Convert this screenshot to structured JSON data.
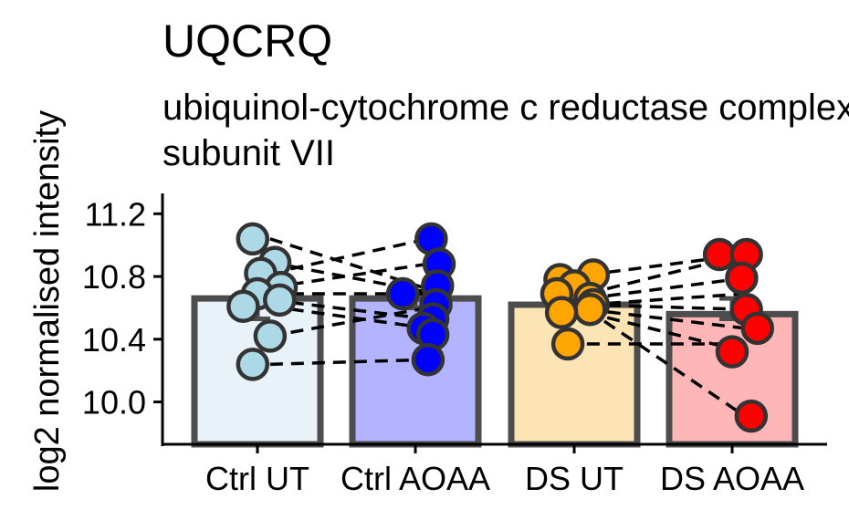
{
  "chart_data": {
    "type": "bar",
    "title": "UQCRQ",
    "subtitle": [
      "ubiquinol-cytochrome c reductase complex III",
      "subunit VII"
    ],
    "ylabel": "log2 normalised intensity",
    "xlabel": "",
    "ylim": [
      9.73,
      11.33
    ],
    "yticks": [
      10.0,
      10.4,
      10.8,
      11.2
    ],
    "ytick_labels": [
      "10.0",
      "10.4",
      "10.8",
      "11.2"
    ],
    "categories": [
      "Ctrl UT",
      "Ctrl AOAA",
      "DS UT",
      "DS AOAA"
    ],
    "bar_values": [
      10.66,
      10.66,
      10.62,
      10.56
    ],
    "bar_fill_colors": [
      "#e8f2f8",
      "#b3b3ff",
      "#fde4b4",
      "#ffb6b6"
    ],
    "point_colors": [
      "#add8e6",
      "#0000ff",
      "#ffa500",
      "#ff0000"
    ],
    "bar_outline_color": "#4d4d4d",
    "errorbars": [
      {
        "low": 10.53,
        "high": 10.74
      },
      {
        "low": 10.6,
        "high": 10.68
      },
      {
        "low": 10.56,
        "high": 10.67
      },
      {
        "low": 10.53,
        "high": 10.66
      }
    ],
    "points": [
      [
        {
          "dx": -0.03,
          "y": 11.04
        },
        {
          "dx": 0.11,
          "y": 10.89
        },
        {
          "dx": 0.02,
          "y": 10.82
        },
        {
          "dx": 0.15,
          "y": 10.73
        },
        {
          "dx": 0.0,
          "y": 10.69
        },
        {
          "dx": 0.14,
          "y": 10.65
        },
        {
          "dx": -0.09,
          "y": 10.61
        },
        {
          "dx": 0.08,
          "y": 10.42
        },
        {
          "dx": -0.03,
          "y": 10.24
        }
      ],
      [
        {
          "dx": 0.1,
          "y": 11.04
        },
        {
          "dx": 0.15,
          "y": 10.88
        },
        {
          "dx": 0.14,
          "y": 10.74
        },
        {
          "dx": -0.08,
          "y": 10.69
        },
        {
          "dx": 0.13,
          "y": 10.62
        },
        {
          "dx": 0.11,
          "y": 10.53
        },
        {
          "dx": 0.05,
          "y": 10.47
        },
        {
          "dx": 0.11,
          "y": 10.43
        },
        {
          "dx": 0.08,
          "y": 10.27
        }
      ],
      [
        {
          "dx": 0.12,
          "y": 10.81
        },
        {
          "dx": -0.09,
          "y": 10.78
        },
        {
          "dx": 0.0,
          "y": 10.74
        },
        {
          "dx": -0.11,
          "y": 10.69
        },
        {
          "dx": 0.1,
          "y": 10.66
        },
        {
          "dx": 0.12,
          "y": 10.62
        },
        {
          "dx": 0.1,
          "y": 10.59
        },
        {
          "dx": -0.08,
          "y": 10.57
        },
        {
          "dx": -0.04,
          "y": 10.37
        }
      ],
      [
        {
          "dx": -0.08,
          "y": 10.94
        },
        {
          "dx": 0.09,
          "y": 10.94
        },
        {
          "dx": 0.06,
          "y": 10.79
        },
        {
          "dx": 0.09,
          "y": 10.59
        },
        {
          "dx": 0.16,
          "y": 10.47
        },
        {
          "dx": 0.0,
          "y": 10.32
        },
        {
          "dx": 0.12,
          "y": 9.91
        }
      ]
    ],
    "paired_lines": [
      {
        "from": [
          0,
          11.04
        ],
        "to": [
          1,
          10.72
        ]
      },
      {
        "from": [
          0,
          10.82
        ],
        "to": [
          1,
          11.04
        ]
      },
      {
        "from": [
          0,
          10.89
        ],
        "to": [
          1,
          10.7
        ]
      },
      {
        "from": [
          0,
          10.73
        ],
        "to": [
          1,
          10.88
        ]
      },
      {
        "from": [
          0,
          10.69
        ],
        "to": [
          1,
          10.69
        ]
      },
      {
        "from": [
          0,
          10.65
        ],
        "to": [
          1,
          10.53
        ]
      },
      {
        "from": [
          0,
          10.61
        ],
        "to": [
          1,
          10.47
        ]
      },
      {
        "from": [
          0,
          10.42
        ],
        "to": [
          1,
          10.6
        ]
      },
      {
        "from": [
          0,
          10.24
        ],
        "to": [
          1,
          10.27
        ]
      },
      {
        "from": [
          2,
          10.81
        ],
        "to": [
          3,
          10.94
        ]
      },
      {
        "from": [
          2,
          10.69
        ],
        "to": [
          3,
          10.94
        ]
      },
      {
        "from": [
          2,
          10.66
        ],
        "to": [
          3,
          10.79
        ]
      },
      {
        "from": [
          2,
          10.62
        ],
        "to": [
          3,
          10.69
        ]
      },
      {
        "from": [
          2,
          10.62
        ],
        "to": [
          3,
          10.59
        ]
      },
      {
        "from": [
          2,
          10.59
        ],
        "to": [
          3,
          10.47
        ]
      },
      {
        "from": [
          2,
          10.57
        ],
        "to": [
          3,
          10.32
        ]
      },
      {
        "from": [
          2,
          10.59
        ],
        "to": [
          3,
          9.91
        ]
      },
      {
        "from": [
          2,
          10.37
        ],
        "to": [
          3,
          10.37
        ]
      }
    ],
    "grid": false,
    "legend": "none"
  }
}
